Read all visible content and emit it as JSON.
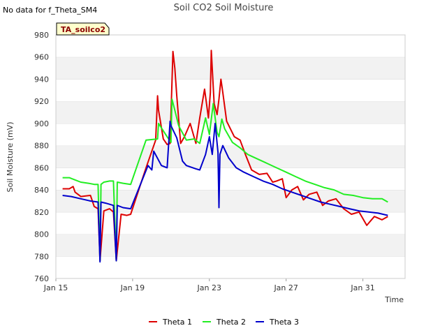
{
  "no_data_note": "No data for f_Theta_SM4",
  "chart_data": {
    "type": "line",
    "title": "Soil CO2 Soil Moisture",
    "xlabel": "Time",
    "ylabel": "Soil Moisture (mV)",
    "site_tag": "TA_soilco2",
    "xlim": [
      15.0,
      33.2
    ],
    "ylim": [
      760,
      980
    ],
    "yticks": [
      760,
      780,
      800,
      820,
      840,
      860,
      880,
      900,
      920,
      940,
      960,
      980
    ],
    "xticks": [
      {
        "value": 15,
        "label": "Jan 15"
      },
      {
        "value": 19,
        "label": "Jan 19"
      },
      {
        "value": 23,
        "label": "Jan 23"
      },
      {
        "value": 27,
        "label": "Jan 27"
      },
      {
        "value": 31,
        "label": "Jan 31"
      }
    ],
    "grid": "horizontal bands",
    "legend_position": "bottom-center",
    "series": [
      {
        "name": "Theta 1",
        "color": "#dd0000",
        "x": [
          15.35,
          15.7,
          15.9,
          16.0,
          16.3,
          16.8,
          17.0,
          17.2,
          17.3,
          17.5,
          17.8,
          18.0,
          18.15,
          18.4,
          18.7,
          18.9,
          19.7,
          20.2,
          20.3,
          20.35,
          20.6,
          20.8,
          20.95,
          21.1,
          21.2,
          21.3,
          21.5,
          21.7,
          22.0,
          22.3,
          22.5,
          22.75,
          22.95,
          23.05,
          23.1,
          23.25,
          23.4,
          23.5,
          23.6,
          23.7,
          23.9,
          24.3,
          24.6,
          24.9,
          25.2,
          25.6,
          26.0,
          26.3,
          26.5,
          26.8,
          27.0,
          27.3,
          27.6,
          27.9,
          28.2,
          28.6,
          28.9,
          29.2,
          29.6,
          30.0,
          30.4,
          30.8,
          31.2,
          31.6,
          32.0,
          32.3
        ],
        "y": [
          841,
          841,
          843,
          838,
          834,
          835,
          825,
          823,
          776,
          821,
          823,
          820,
          776,
          818,
          817,
          818,
          860,
          885,
          925,
          912,
          886,
          881,
          882,
          965,
          950,
          925,
          882,
          888,
          900,
          882,
          905,
          931,
          905,
          928,
          966,
          918,
          908,
          922,
          940,
          928,
          902,
          888,
          885,
          871,
          858,
          854,
          855,
          847,
          848,
          850,
          833,
          840,
          843,
          831,
          836,
          838,
          826,
          830,
          832,
          823,
          818,
          820,
          808,
          816,
          813,
          816
        ]
      },
      {
        "name": "Theta 2",
        "color": "#22ee22",
        "x": [
          15.35,
          15.7,
          16.0,
          16.3,
          16.7,
          17.0,
          17.2,
          17.3,
          17.35,
          17.5,
          17.8,
          18.0,
          18.15,
          18.2,
          18.5,
          18.9,
          19.7,
          20.3,
          20.35,
          20.8,
          21.0,
          21.05,
          21.2,
          21.4,
          21.8,
          22.2,
          22.5,
          22.8,
          23.0,
          23.2,
          23.4,
          23.5,
          23.65,
          23.8,
          24.2,
          24.6,
          25.0,
          25.5,
          26.0,
          26.5,
          27.0,
          27.5,
          28.0,
          28.5,
          29.0,
          29.5,
          30.0,
          30.5,
          31.0,
          31.5,
          32.0,
          32.3
        ],
        "y": [
          851,
          851,
          849,
          847,
          846,
          845,
          845,
          776,
          845,
          847,
          848,
          848,
          776,
          847,
          846,
          845,
          885,
          886,
          900,
          888,
          883,
          922,
          912,
          898,
          885,
          886,
          882,
          905,
          890,
          918,
          892,
          888,
          904,
          895,
          883,
          878,
          872,
          868,
          864,
          860,
          856,
          852,
          848,
          845,
          842,
          840,
          836,
          835,
          833,
          832,
          832,
          829
        ]
      },
      {
        "name": "Theta 3",
        "color": "#0000cc",
        "x": [
          15.35,
          15.8,
          16.3,
          16.8,
          17.2,
          17.3,
          17.35,
          17.6,
          18.0,
          18.15,
          18.2,
          18.5,
          18.9,
          19.8,
          20.0,
          20.1,
          20.5,
          20.8,
          20.95,
          21.0,
          21.3,
          21.6,
          21.8,
          22.3,
          22.5,
          22.8,
          23.0,
          23.15,
          23.3,
          23.45,
          23.5,
          23.55,
          23.7,
          24.0,
          24.4,
          24.8,
          25.3,
          25.8,
          26.3,
          26.8,
          27.3,
          27.8,
          28.3,
          28.8,
          29.3,
          29.8,
          30.3,
          30.8,
          31.3,
          31.8,
          32.3
        ],
        "y": [
          835,
          834,
          832,
          830,
          829,
          775,
          829,
          828,
          826,
          776,
          826,
          824,
          823,
          862,
          858,
          875,
          862,
          860,
          902,
          898,
          887,
          866,
          862,
          859,
          858,
          872,
          888,
          872,
          900,
          874,
          824,
          872,
          880,
          869,
          860,
          856,
          852,
          848,
          845,
          841,
          838,
          835,
          832,
          829,
          827,
          825,
          823,
          821,
          820,
          819,
          817
        ]
      }
    ]
  }
}
